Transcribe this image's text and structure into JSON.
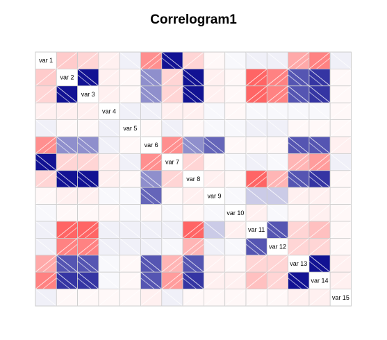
{
  "chart_data": {
    "type": "heatmap",
    "title": "Correlogram1",
    "variables": [
      "var 1",
      "var 2",
      "var 3",
      "var 4",
      "var 5",
      "var 6",
      "var 7",
      "var 8",
      "var 9",
      "var 10",
      "var 11",
      "var 12",
      "var 13",
      "var 14",
      "var 15"
    ],
    "color_scale": {
      "negative": "#00008B",
      "zero": "#FFFFFF",
      "positive": "#FF0000"
    },
    "value_range": [
      -1,
      1
    ],
    "panel_style": "shade",
    "grid_color": "#CCCCCC",
    "matrix": [
      [
        1.0,
        0.3,
        0.25,
        0.1,
        -0.1,
        0.55,
        -0.95,
        0.25,
        0.05,
        -0.05,
        -0.1,
        -0.1,
        0.45,
        0.6,
        -0.1
      ],
      [
        0.3,
        1.0,
        -0.95,
        0.1,
        0.05,
        -0.55,
        0.25,
        -0.95,
        0.1,
        0.05,
        0.7,
        0.6,
        -0.75,
        -0.85,
        0.05
      ],
      [
        0.25,
        -0.95,
        1.0,
        0.1,
        0.05,
        -0.55,
        0.25,
        -0.95,
        0.1,
        0.05,
        0.7,
        0.6,
        -0.75,
        -0.85,
        0.05
      ],
      [
        0.1,
        0.1,
        0.1,
        1.0,
        -0.1,
        -0.1,
        0.1,
        0.1,
        -0.05,
        0.05,
        -0.05,
        -0.05,
        -0.05,
        -0.05,
        0.05
      ],
      [
        -0.1,
        0.05,
        0.05,
        -0.1,
        1.0,
        0.05,
        -0.1,
        0.05,
        -0.05,
        -0.05,
        -0.1,
        -0.1,
        0.05,
        0.05,
        0.05
      ],
      [
        0.55,
        -0.55,
        -0.55,
        -0.1,
        0.05,
        1.0,
        0.55,
        -0.55,
        -0.7,
        0.05,
        0.05,
        0.05,
        -0.75,
        -0.75,
        0.1
      ],
      [
        -0.95,
        0.25,
        0.25,
        0.1,
        -0.1,
        0.55,
        1.0,
        0.25,
        0.05,
        -0.05,
        -0.1,
        -0.05,
        0.4,
        0.5,
        -0.1
      ],
      [
        0.25,
        -0.95,
        -0.95,
        0.1,
        0.05,
        -0.55,
        0.25,
        1.0,
        0.1,
        0.05,
        0.7,
        0.4,
        -0.75,
        -0.85,
        0.05
      ],
      [
        0.05,
        0.1,
        0.1,
        -0.05,
        -0.05,
        -0.7,
        0.05,
        0.1,
        1.0,
        -0.05,
        -0.3,
        -0.3,
        0.1,
        0.1,
        0.05
      ],
      [
        -0.05,
        0.05,
        0.05,
        0.05,
        -0.05,
        0.05,
        -0.05,
        0.05,
        -0.05,
        1.0,
        0.1,
        -0.05,
        0.05,
        0.1,
        0.05
      ],
      [
        -0.1,
        0.7,
        0.7,
        -0.1,
        -0.1,
        -0.1,
        -0.1,
        0.7,
        -0.3,
        0.1,
        1.0,
        -0.75,
        0.25,
        0.35,
        0.05
      ],
      [
        -0.1,
        0.6,
        0.6,
        -0.1,
        -0.1,
        -0.1,
        -0.05,
        0.4,
        -0.1,
        -0.05,
        -0.75,
        1.0,
        0.25,
        0.25,
        0.05
      ],
      [
        0.45,
        -0.75,
        -0.75,
        -0.05,
        0.05,
        -0.75,
        0.4,
        -0.75,
        0.1,
        0.05,
        0.25,
        0.25,
        1.0,
        -0.95,
        0.1
      ],
      [
        0.6,
        -0.85,
        -0.85,
        -0.05,
        0.05,
        -0.75,
        0.5,
        -0.85,
        0.1,
        0.1,
        0.35,
        0.25,
        -0.95,
        1.0,
        0.1
      ],
      [
        -0.1,
        0.05,
        0.05,
        0.05,
        0.05,
        0.1,
        -0.1,
        0.05,
        0.05,
        0.05,
        0.05,
        0.05,
        0.1,
        0.1,
        1.0
      ]
    ]
  }
}
